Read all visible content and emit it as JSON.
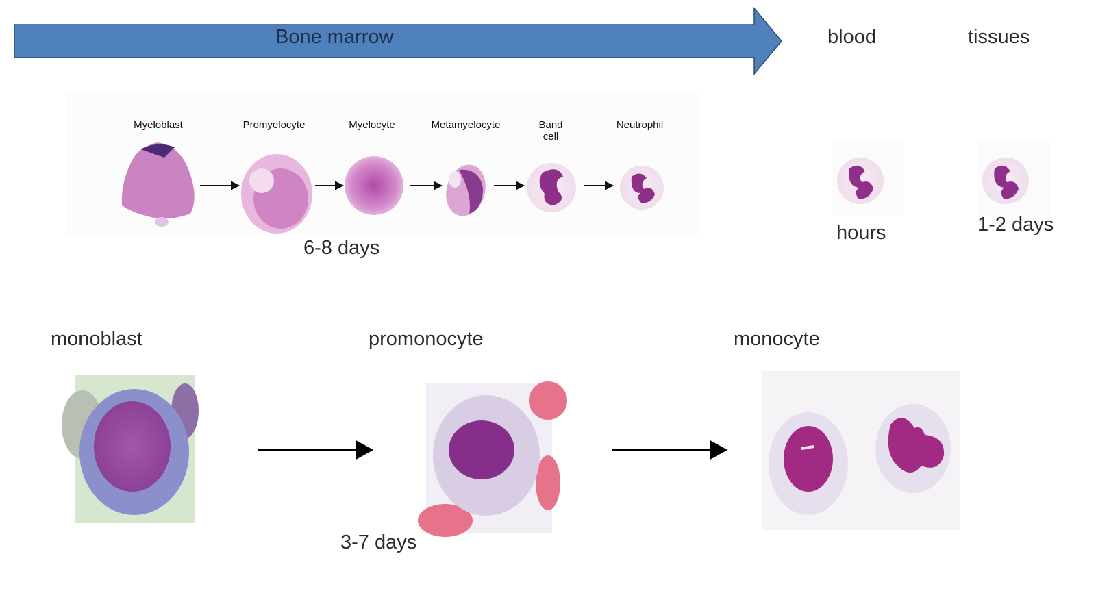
{
  "header": {
    "bone_marrow_label": "Bone marrow",
    "blood_label": "blood",
    "tissues_label": "tissues",
    "arrow_color": "#4f81bd"
  },
  "granulocyte": {
    "stages": [
      {
        "label": "Myeloblast"
      },
      {
        "label": "Promyelocyte"
      },
      {
        "label": "Myelocyte"
      },
      {
        "label": "Metamyelocyte"
      },
      {
        "label": "Band\ncell"
      },
      {
        "label": "Neutrophil"
      }
    ],
    "marrow_duration": "6-8 days",
    "blood_duration": "hours",
    "tissue_duration": "1-2 days"
  },
  "monocyte": {
    "stages": [
      {
        "label": "monoblast"
      },
      {
        "label": "promonocyte"
      },
      {
        "label": "monocyte"
      }
    ],
    "duration": "3-7 days"
  },
  "colors": {
    "stain_purple": "#7a2a7e",
    "stain_pink": "#d98ac8",
    "cytoplasm_light": "#efe3ef",
    "rbc_red": "#e7738a"
  }
}
